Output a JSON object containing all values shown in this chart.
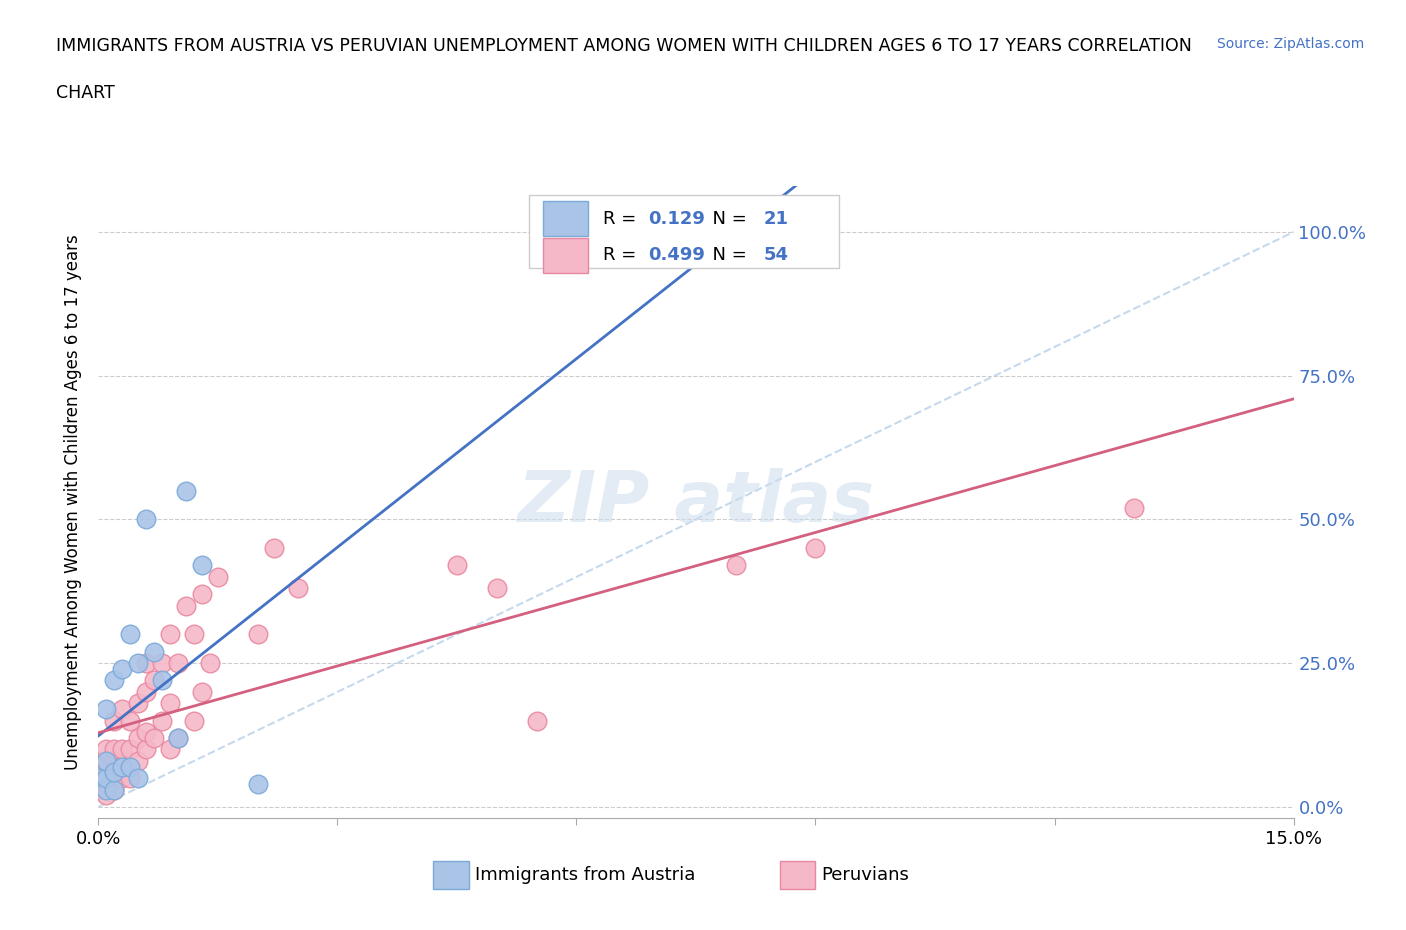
{
  "title_line1": "IMMIGRANTS FROM AUSTRIA VS PERUVIAN UNEMPLOYMENT AMONG WOMEN WITH CHILDREN AGES 6 TO 17 YEARS CORRELATION",
  "title_line2": "CHART",
  "source": "Source: ZipAtlas.com",
  "ylabel": "Unemployment Among Women with Children Ages 6 to 17 years",
  "xlim": [
    0.0,
    0.15
  ],
  "ylim": [
    -0.02,
    1.08
  ],
  "yticks": [
    0.0,
    0.25,
    0.5,
    0.75,
    1.0
  ],
  "ytick_labels": [
    "0.0%",
    "25.0%",
    "50.0%",
    "75.0%",
    "100.0%"
  ],
  "xticks": [
    0.0,
    0.03,
    0.06,
    0.09,
    0.12,
    0.15
  ],
  "xtick_labels": [
    "0.0%",
    "",
    "",
    "",
    "",
    "15.0%"
  ],
  "austria_color": "#aac4e8",
  "austria_edge": "#7aaad8",
  "peru_color": "#f5b8c8",
  "peru_edge": "#e888a0",
  "austria_R": 0.129,
  "austria_N": 21,
  "peru_R": 0.499,
  "peru_N": 54,
  "austria_line_color": "#4472c4",
  "peru_line_color": "#d46080",
  "diagonal_line_color": "#b8d0e8",
  "background_color": "#ffffff",
  "label_color": "#4472c4",
  "austria_x": [
    0.0,
    0.001,
    0.001,
    0.001,
    0.001,
    0.002,
    0.002,
    0.002,
    0.003,
    0.003,
    0.004,
    0.004,
    0.005,
    0.005,
    0.006,
    0.007,
    0.008,
    0.01,
    0.011,
    0.013,
    0.02
  ],
  "austria_y": [
    0.05,
    0.03,
    0.05,
    0.08,
    0.17,
    0.03,
    0.06,
    0.22,
    0.07,
    0.24,
    0.07,
    0.3,
    0.05,
    0.25,
    0.5,
    0.27,
    0.22,
    0.12,
    0.55,
    0.42,
    0.04
  ],
  "peru_x": [
    0.0,
    0.0,
    0.0,
    0.0,
    0.001,
    0.001,
    0.001,
    0.001,
    0.001,
    0.001,
    0.002,
    0.002,
    0.002,
    0.002,
    0.002,
    0.003,
    0.003,
    0.003,
    0.003,
    0.004,
    0.004,
    0.004,
    0.005,
    0.005,
    0.005,
    0.006,
    0.006,
    0.006,
    0.006,
    0.007,
    0.007,
    0.008,
    0.008,
    0.009,
    0.009,
    0.009,
    0.01,
    0.01,
    0.011,
    0.012,
    0.012,
    0.013,
    0.013,
    0.014,
    0.015,
    0.02,
    0.022,
    0.025,
    0.045,
    0.05,
    0.055,
    0.08,
    0.09,
    0.13
  ],
  "peru_y": [
    0.03,
    0.05,
    0.06,
    0.08,
    0.02,
    0.04,
    0.05,
    0.07,
    0.08,
    0.1,
    0.03,
    0.05,
    0.08,
    0.1,
    0.15,
    0.05,
    0.07,
    0.1,
    0.17,
    0.05,
    0.1,
    0.15,
    0.08,
    0.12,
    0.18,
    0.1,
    0.13,
    0.2,
    0.25,
    0.12,
    0.22,
    0.15,
    0.25,
    0.1,
    0.18,
    0.3,
    0.12,
    0.25,
    0.35,
    0.15,
    0.3,
    0.2,
    0.37,
    0.25,
    0.4,
    0.3,
    0.45,
    0.38,
    0.42,
    0.38,
    0.15,
    0.42,
    0.45,
    0.52
  ],
  "diagonal_line_x": [
    0.0,
    0.15
  ],
  "diagonal_line_y": [
    0.0,
    1.0
  ],
  "legend_bottom_label1": "Immigrants from Austria",
  "legend_bottom_label2": "Peruvians"
}
